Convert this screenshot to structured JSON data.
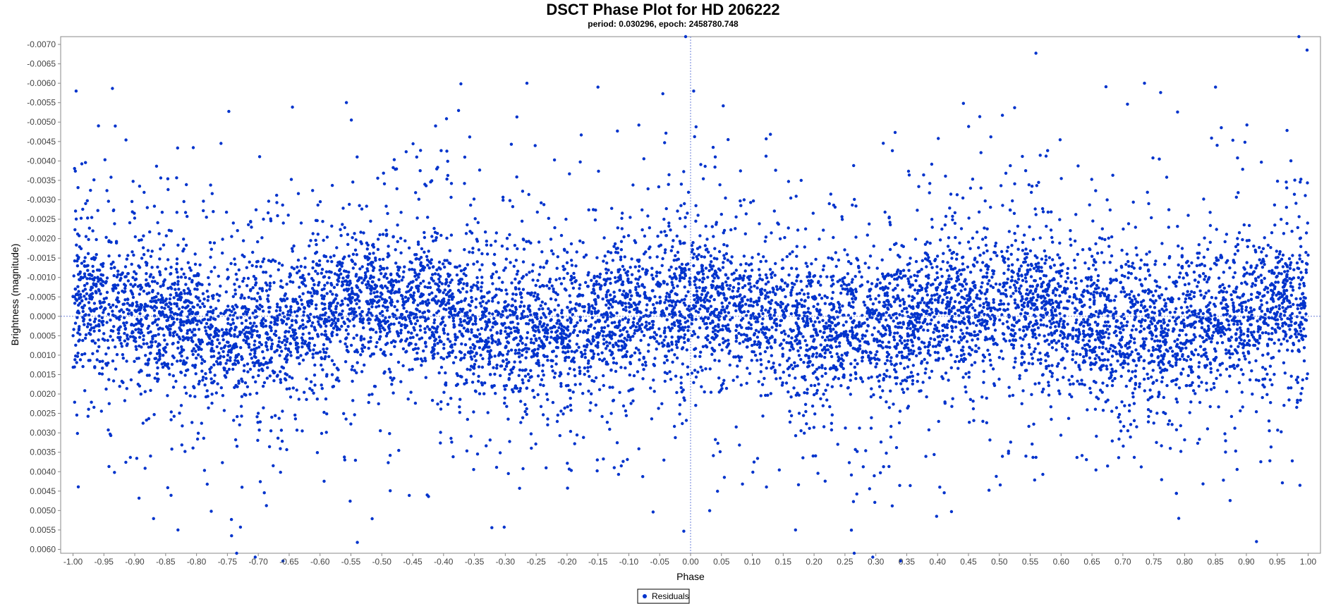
{
  "chart_data": {
    "type": "scatter",
    "title": "DSCT Phase Plot for HD 206222",
    "subtitle": "period: 0.030296, epoch: 2458780.748",
    "xlabel": "Phase",
    "ylabel": "Brightness (magnitude)",
    "xlim": [
      -1.02,
      1.02
    ],
    "ylim": [
      -0.0072,
      0.0061
    ],
    "y_inverted": true,
    "x_ticks": [
      "-1.00",
      "-0.95",
      "-0.90",
      "-0.85",
      "-0.80",
      "-0.75",
      "-0.70",
      "-0.65",
      "-0.60",
      "-0.55",
      "-0.50",
      "-0.45",
      "-0.40",
      "-0.35",
      "-0.30",
      "-0.25",
      "-0.20",
      "-0.15",
      "-0.10",
      "-0.05",
      "0.00",
      "0.05",
      "0.10",
      "0.15",
      "0.20",
      "0.25",
      "0.30",
      "0.35",
      "0.40",
      "0.45",
      "0.50",
      "0.55",
      "0.60",
      "0.65",
      "0.70",
      "0.75",
      "0.80",
      "0.85",
      "0.90",
      "0.95",
      "1.00"
    ],
    "y_ticks": [
      "-0.0070",
      "-0.0065",
      "-0.0060",
      "-0.0055",
      "-0.0050",
      "-0.0045",
      "-0.0040",
      "-0.0035",
      "-0.0030",
      "-0.0025",
      "-0.0020",
      "-0.0015",
      "-0.0010",
      "-0.0005",
      "0.0000",
      "0.0005",
      "0.0010",
      "0.0015",
      "0.0020",
      "0.0025",
      "0.0030",
      "0.0035",
      "0.0040",
      "0.0045",
      "0.0050",
      "0.0055",
      "0.0060"
    ],
    "zero_lines": {
      "x": 0.0,
      "y": 0.0
    },
    "legend": {
      "position": "bottom-center",
      "entries": [
        "Residuals"
      ]
    },
    "series": [
      {
        "name": "Residuals",
        "color": "#0033cc",
        "phase_range": [
          -1.0,
          1.0
        ],
        "model": {
          "amplitude_mag": 0.0004,
          "cycles_per_phase": 2,
          "core_sigma_mag": 0.00085,
          "halo_sigma_mag": 0.0021,
          "halo_fraction": 0.3
        },
        "notable_points": [
          {
            "x": -0.008,
            "y": -0.0072
          },
          {
            "x": 0.985,
            "y": -0.0072
          },
          {
            "x": -0.265,
            "y": -0.006
          },
          {
            "x": 0.735,
            "y": -0.006
          },
          {
            "x": -0.15,
            "y": -0.0059
          },
          {
            "x": 0.85,
            "y": -0.0059
          },
          {
            "x": -0.995,
            "y": -0.0058
          },
          {
            "x": 0.005,
            "y": -0.0058
          },
          {
            "x": -0.735,
            "y": 0.0061
          },
          {
            "x": 0.265,
            "y": 0.0061
          },
          {
            "x": -0.705,
            "y": 0.0062
          },
          {
            "x": 0.295,
            "y": 0.0062
          },
          {
            "x": -0.66,
            "y": 0.0063
          },
          {
            "x": 0.34,
            "y": 0.0063
          },
          {
            "x": -0.83,
            "y": 0.0055
          },
          {
            "x": 0.17,
            "y": 0.0055
          }
        ]
      }
    ]
  }
}
